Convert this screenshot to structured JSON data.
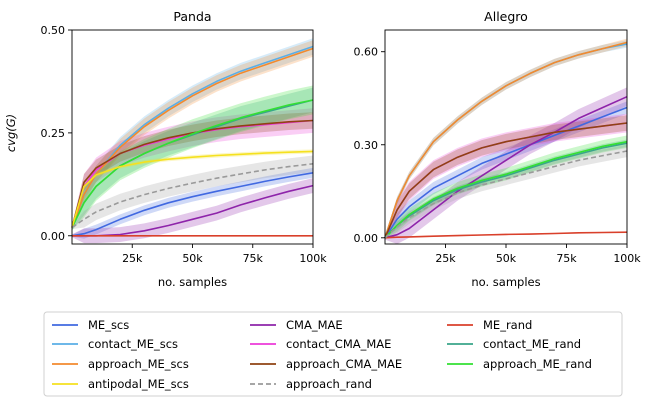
{
  "ylabel": "cvg(G)",
  "legend": [
    {
      "key": "ME_scs",
      "color": "#4169e1",
      "dash": false
    },
    {
      "key": "CMA_MAE",
      "color": "#8e24aa",
      "dash": false
    },
    {
      "key": "ME_rand",
      "color": "#d9402b",
      "dash": false
    },
    {
      "key": "contact_ME_scs",
      "color": "#5aaee6",
      "dash": false
    },
    {
      "key": "contact_CMA_MAE",
      "color": "#ec3ad8",
      "dash": false
    },
    {
      "key": "contact_ME_rand",
      "color": "#3aa58a",
      "dash": false
    },
    {
      "key": "approach_ME_scs",
      "color": "#f28a2e",
      "dash": false
    },
    {
      "key": "approach_CMA_MAE",
      "color": "#8f4313",
      "dash": false
    },
    {
      "key": "approach_ME_rand",
      "color": "#33e033",
      "dash": false
    },
    {
      "key": "antipodal_ME_scs",
      "color": "#f5e11f",
      "dash": false
    },
    {
      "key": "approach_rand",
      "color": "#9a9a9a",
      "dash": true
    }
  ],
  "chart_data": [
    {
      "type": "line",
      "title": "Panda",
      "xlabel": "no. samples",
      "ylabel": "cvg(G)",
      "xlim": [
        0,
        100000
      ],
      "ylim": [
        -0.02,
        0.5
      ],
      "yticks": [
        0.0,
        0.25,
        0.5
      ],
      "ytick_labels": [
        "0.00",
        "0.25",
        "0.50"
      ],
      "xticks": [
        25000,
        50000,
        75000,
        100000
      ],
      "xtick_labels": [
        "25k",
        "50k",
        "75k",
        "100k"
      ],
      "x": [
        0,
        5000,
        10000,
        20000,
        30000,
        40000,
        50000,
        60000,
        70000,
        80000,
        90000,
        100000
      ],
      "series": [
        {
          "key": "ME_scs",
          "values": [
            0.0,
            0.005,
            0.015,
            0.04,
            0.062,
            0.08,
            0.095,
            0.108,
            0.12,
            0.132,
            0.143,
            0.153
          ],
          "band": 0.012
        },
        {
          "key": "CMA_MAE",
          "values": [
            0.0,
            0.0,
            0.0,
            0.003,
            0.012,
            0.025,
            0.04,
            0.055,
            0.075,
            0.092,
            0.108,
            0.122
          ],
          "band": 0.018
        },
        {
          "key": "ME_rand",
          "values": [
            0.0,
            0.0,
            0.0,
            0.0,
            0.0,
            0.0,
            0.0,
            0.0,
            0.0,
            0.0,
            0.0,
            0.0
          ],
          "band": 0.0
        },
        {
          "key": "contact_ME_scs",
          "values": [
            0.02,
            0.1,
            0.15,
            0.22,
            0.27,
            0.31,
            0.345,
            0.375,
            0.4,
            0.42,
            0.44,
            0.46
          ],
          "band": 0.02
        },
        {
          "key": "contact_CMA_MAE",
          "values": [
            0.02,
            0.12,
            0.16,
            0.2,
            0.22,
            0.235,
            0.248,
            0.258,
            0.265,
            0.27,
            0.275,
            0.28
          ],
          "band": 0.03
        },
        {
          "key": "contact_ME_rand",
          "values": [
            0.02,
            0.08,
            0.12,
            0.17,
            0.2,
            0.225,
            0.245,
            0.265,
            0.285,
            0.3,
            0.315,
            0.33
          ],
          "band": 0.03
        },
        {
          "key": "approach_ME_scs",
          "values": [
            0.02,
            0.1,
            0.15,
            0.215,
            0.265,
            0.305,
            0.34,
            0.37,
            0.395,
            0.415,
            0.435,
            0.455
          ],
          "band": 0.02
        },
        {
          "key": "approach_CMA_MAE",
          "values": [
            0.02,
            0.13,
            0.165,
            0.2,
            0.222,
            0.238,
            0.25,
            0.26,
            0.267,
            0.272,
            0.277,
            0.28
          ],
          "band": 0.02
        },
        {
          "key": "approach_ME_rand",
          "values": [
            0.02,
            0.08,
            0.12,
            0.17,
            0.2,
            0.225,
            0.248,
            0.268,
            0.287,
            0.303,
            0.318,
            0.33
          ],
          "band": 0.035
        },
        {
          "key": "antipodal_ME_scs",
          "values": [
            0.02,
            0.12,
            0.148,
            0.168,
            0.179,
            0.186,
            0.191,
            0.195,
            0.198,
            0.201,
            0.203,
            0.205
          ],
          "band": 0.005
        },
        {
          "key": "approach_rand",
          "values": [
            0.02,
            0.04,
            0.058,
            0.082,
            0.1,
            0.115,
            0.128,
            0.14,
            0.15,
            0.16,
            0.168,
            0.175
          ],
          "band": 0.02
        }
      ]
    },
    {
      "type": "line",
      "title": "Allegro",
      "xlabel": "no. samples",
      "ylabel": "",
      "xlim": [
        0,
        100000
      ],
      "ylim": [
        -0.02,
        0.67
      ],
      "yticks": [
        0.0,
        0.3,
        0.6
      ],
      "ytick_labels": [
        "0.00",
        "0.30",
        "0.60"
      ],
      "xticks": [
        25000,
        50000,
        75000,
        100000
      ],
      "xtick_labels": [
        "25k",
        "50k",
        "75k",
        "100k"
      ],
      "x": [
        0,
        5000,
        10000,
        20000,
        30000,
        40000,
        50000,
        60000,
        70000,
        80000,
        90000,
        100000
      ],
      "series": [
        {
          "key": "ME_scs",
          "values": [
            0.0,
            0.06,
            0.1,
            0.16,
            0.2,
            0.24,
            0.27,
            0.3,
            0.33,
            0.36,
            0.39,
            0.42
          ],
          "band": 0.02
        },
        {
          "key": "CMA_MAE",
          "values": [
            0.0,
            0.01,
            0.03,
            0.09,
            0.15,
            0.2,
            0.25,
            0.3,
            0.34,
            0.385,
            0.42,
            0.455
          ],
          "band": 0.03
        },
        {
          "key": "ME_rand",
          "values": [
            0.0,
            0.002,
            0.003,
            0.005,
            0.007,
            0.009,
            0.011,
            0.012,
            0.014,
            0.016,
            0.017,
            0.018
          ],
          "band": 0.002
        },
        {
          "key": "contact_ME_scs",
          "values": [
            0.0,
            0.12,
            0.2,
            0.31,
            0.38,
            0.44,
            0.49,
            0.53,
            0.565,
            0.59,
            0.61,
            0.625
          ],
          "band": 0.012
        },
        {
          "key": "contact_CMA_MAE",
          "values": [
            0.0,
            0.09,
            0.15,
            0.22,
            0.26,
            0.29,
            0.31,
            0.325,
            0.34,
            0.35,
            0.36,
            0.37
          ],
          "band": 0.03
        },
        {
          "key": "contact_ME_rand",
          "values": [
            0.0,
            0.04,
            0.07,
            0.12,
            0.155,
            0.18,
            0.2,
            0.225,
            0.25,
            0.27,
            0.29,
            0.305
          ],
          "band": 0.012
        },
        {
          "key": "approach_ME_scs",
          "values": [
            0.0,
            0.12,
            0.2,
            0.31,
            0.38,
            0.44,
            0.49,
            0.53,
            0.565,
            0.59,
            0.61,
            0.63
          ],
          "band": 0.012
        },
        {
          "key": "approach_CMA_MAE",
          "values": [
            0.0,
            0.09,
            0.15,
            0.22,
            0.26,
            0.29,
            0.31,
            0.325,
            0.34,
            0.35,
            0.36,
            0.37
          ],
          "band": 0.025
        },
        {
          "key": "approach_ME_rand",
          "values": [
            0.0,
            0.04,
            0.075,
            0.125,
            0.16,
            0.185,
            0.205,
            0.23,
            0.255,
            0.275,
            0.295,
            0.31
          ],
          "band": 0.02
        },
        {
          "key": "approach_rand",
          "values": [
            0.0,
            0.035,
            0.065,
            0.11,
            0.145,
            0.17,
            0.19,
            0.21,
            0.23,
            0.25,
            0.265,
            0.28
          ],
          "band": 0.02
        }
      ]
    }
  ]
}
